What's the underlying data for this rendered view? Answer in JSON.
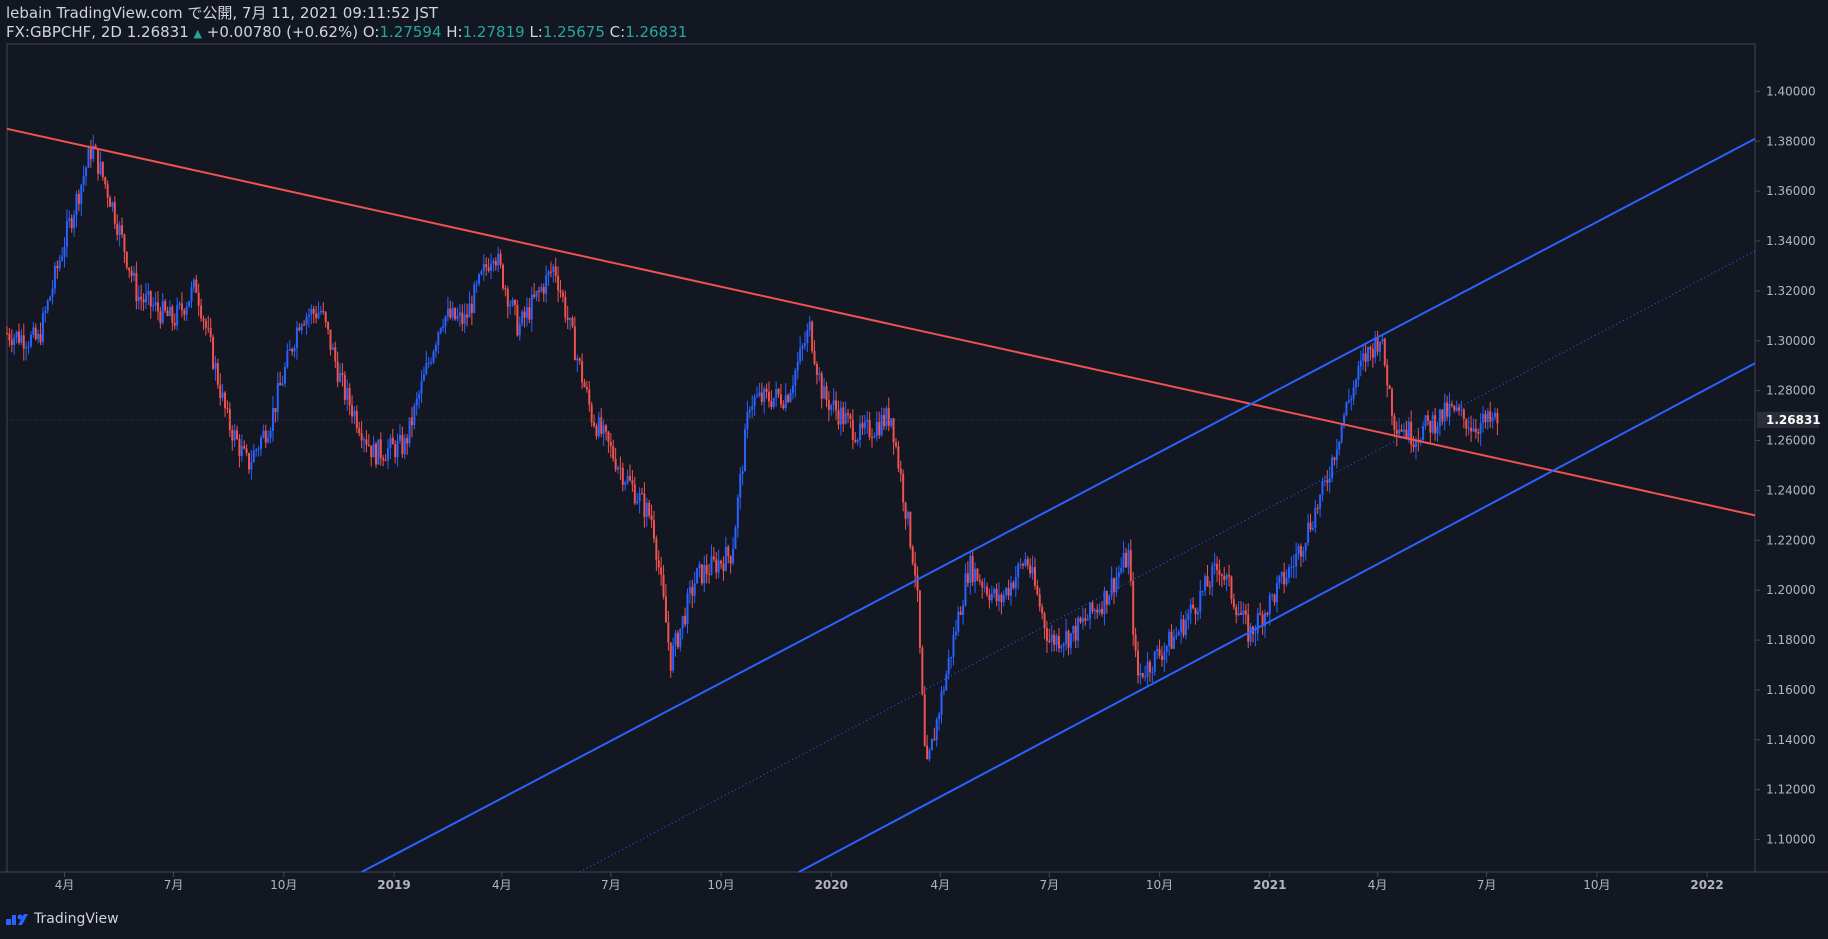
{
  "header": {
    "published": "lebain TradingView.com で公開, 7月 11, 2021 09:11:52 JST",
    "symbol": "FX:GBPCHF, 2D",
    "last": "1.26831",
    "change": "+0.00780 (+0.62%)",
    "o_label": "O:",
    "o": "1.27594",
    "h_label": "H:",
    "h": "1.27819",
    "l_label": "L:",
    "l": "1.25675",
    "c_label": "C:",
    "c": "1.26831"
  },
  "footer": {
    "brand": "TradingView"
  },
  "colors": {
    "bg": "#131722",
    "up": "#2962ff",
    "down": "#ef5350",
    "grid": "#2a2e39",
    "axis": "#b2b5be"
  },
  "chart_data": {
    "type": "candlestick",
    "symbol": "FX:GBPCHF",
    "interval": "2D",
    "ylim": [
      1.087,
      1.419
    ],
    "x_range": [
      "2018-02-12",
      "2022-02-10"
    ],
    "y_ticks": [
      "1.10000",
      "1.12000",
      "1.14000",
      "1.16000",
      "1.18000",
      "1.20000",
      "1.22000",
      "1.24000",
      "1.26000",
      "1.28000",
      "1.30000",
      "1.32000",
      "1.34000",
      "1.36000",
      "1.38000",
      "1.40000"
    ],
    "x_ticks": [
      {
        "date": "2018-04-01",
        "label": "4月"
      },
      {
        "date": "2018-07-01",
        "label": "7月"
      },
      {
        "date": "2018-10-01",
        "label": "10月"
      },
      {
        "date": "2019-01-01",
        "label": "2019"
      },
      {
        "date": "2019-04-01",
        "label": "4月"
      },
      {
        "date": "2019-07-01",
        "label": "7月"
      },
      {
        "date": "2019-10-01",
        "label": "10月"
      },
      {
        "date": "2020-01-01",
        "label": "2020"
      },
      {
        "date": "2020-04-01",
        "label": "4月"
      },
      {
        "date": "2020-07-01",
        "label": "7月"
      },
      {
        "date": "2020-10-01",
        "label": "10月"
      },
      {
        "date": "2021-01-01",
        "label": "2021"
      },
      {
        "date": "2021-04-01",
        "label": "4月"
      },
      {
        "date": "2021-07-01",
        "label": "7月"
      },
      {
        "date": "2021-10-01",
        "label": "10月"
      },
      {
        "date": "2022-01-01",
        "label": "2022"
      }
    ],
    "last_price": 1.26831,
    "price_path": [
      [
        "2018-02-12",
        1.303
      ],
      [
        "2018-03-10",
        1.3
      ],
      [
        "2018-04-01",
        1.34
      ],
      [
        "2018-04-24",
        1.378
      ],
      [
        "2018-05-10",
        1.356
      ],
      [
        "2018-06-01",
        1.318
      ],
      [
        "2018-07-01",
        1.308
      ],
      [
        "2018-07-20",
        1.322
      ],
      [
        "2018-08-15",
        1.268
      ],
      [
        "2018-09-01",
        1.25
      ],
      [
        "2018-09-20",
        1.268
      ],
      [
        "2018-10-15",
        1.31
      ],
      [
        "2018-11-01",
        1.312
      ],
      [
        "2018-11-20",
        1.28
      ],
      [
        "2018-12-15",
        1.255
      ],
      [
        "2019-01-10",
        1.258
      ],
      [
        "2019-02-10",
        1.31
      ],
      [
        "2019-03-01",
        1.308
      ],
      [
        "2019-03-25",
        1.337
      ],
      [
        "2019-04-15",
        1.305
      ],
      [
        "2019-05-15",
        1.33
      ],
      [
        "2019-06-15",
        1.27
      ],
      [
        "2019-07-10",
        1.248
      ],
      [
        "2019-08-05",
        1.228
      ],
      [
        "2019-08-20",
        1.172
      ],
      [
        "2019-09-10",
        1.205
      ],
      [
        "2019-10-10",
        1.215
      ],
      [
        "2019-10-25",
        1.276
      ],
      [
        "2019-11-25",
        1.278
      ],
      [
        "2019-12-14",
        1.305
      ],
      [
        "2019-12-25",
        1.278
      ],
      [
        "2020-01-25",
        1.262
      ],
      [
        "2020-02-20",
        1.27
      ],
      [
        "2020-03-12",
        1.205
      ],
      [
        "2020-03-20",
        1.125
      ],
      [
        "2020-04-01",
        1.155
      ],
      [
        "2020-04-25",
        1.21
      ],
      [
        "2020-05-20",
        1.195
      ],
      [
        "2020-06-12",
        1.213
      ],
      [
        "2020-07-01",
        1.18
      ],
      [
        "2020-07-20",
        1.182
      ],
      [
        "2020-08-15",
        1.196
      ],
      [
        "2020-09-05",
        1.214
      ],
      [
        "2020-09-12",
        1.165
      ],
      [
        "2020-10-15",
        1.182
      ],
      [
        "2020-11-20",
        1.21
      ],
      [
        "2020-12-15",
        1.182
      ],
      [
        "2021-01-20",
        1.21
      ],
      [
        "2021-02-15",
        1.24
      ],
      [
        "2021-03-05",
        1.272
      ],
      [
        "2021-03-20",
        1.292
      ],
      [
        "2021-04-03",
        1.302
      ],
      [
        "2021-04-15",
        1.268
      ],
      [
        "2021-05-01",
        1.262
      ],
      [
        "2021-06-01",
        1.272
      ],
      [
        "2021-06-20",
        1.266
      ],
      [
        "2021-07-10",
        1.268
      ]
    ],
    "trend_lines": [
      {
        "color": "#ef5350",
        "from": [
          "2018-02-12",
          1.385
        ],
        "to": [
          "2022-02-10",
          1.23
        ]
      },
      {
        "color": "#2962ff",
        "from": [
          "2018-12-05",
          1.087
        ],
        "to": [
          "2022-02-10",
          1.381
        ]
      },
      {
        "color": "#2962ff",
        "from": [
          "2019-12-05",
          1.087
        ],
        "to": [
          "2022-02-10",
          1.291
        ]
      },
      {
        "color": "#2962ff",
        "dotted": true,
        "from": [
          "2019-06-05",
          1.087
        ],
        "to": [
          "2022-02-10",
          1.336
        ]
      }
    ]
  }
}
